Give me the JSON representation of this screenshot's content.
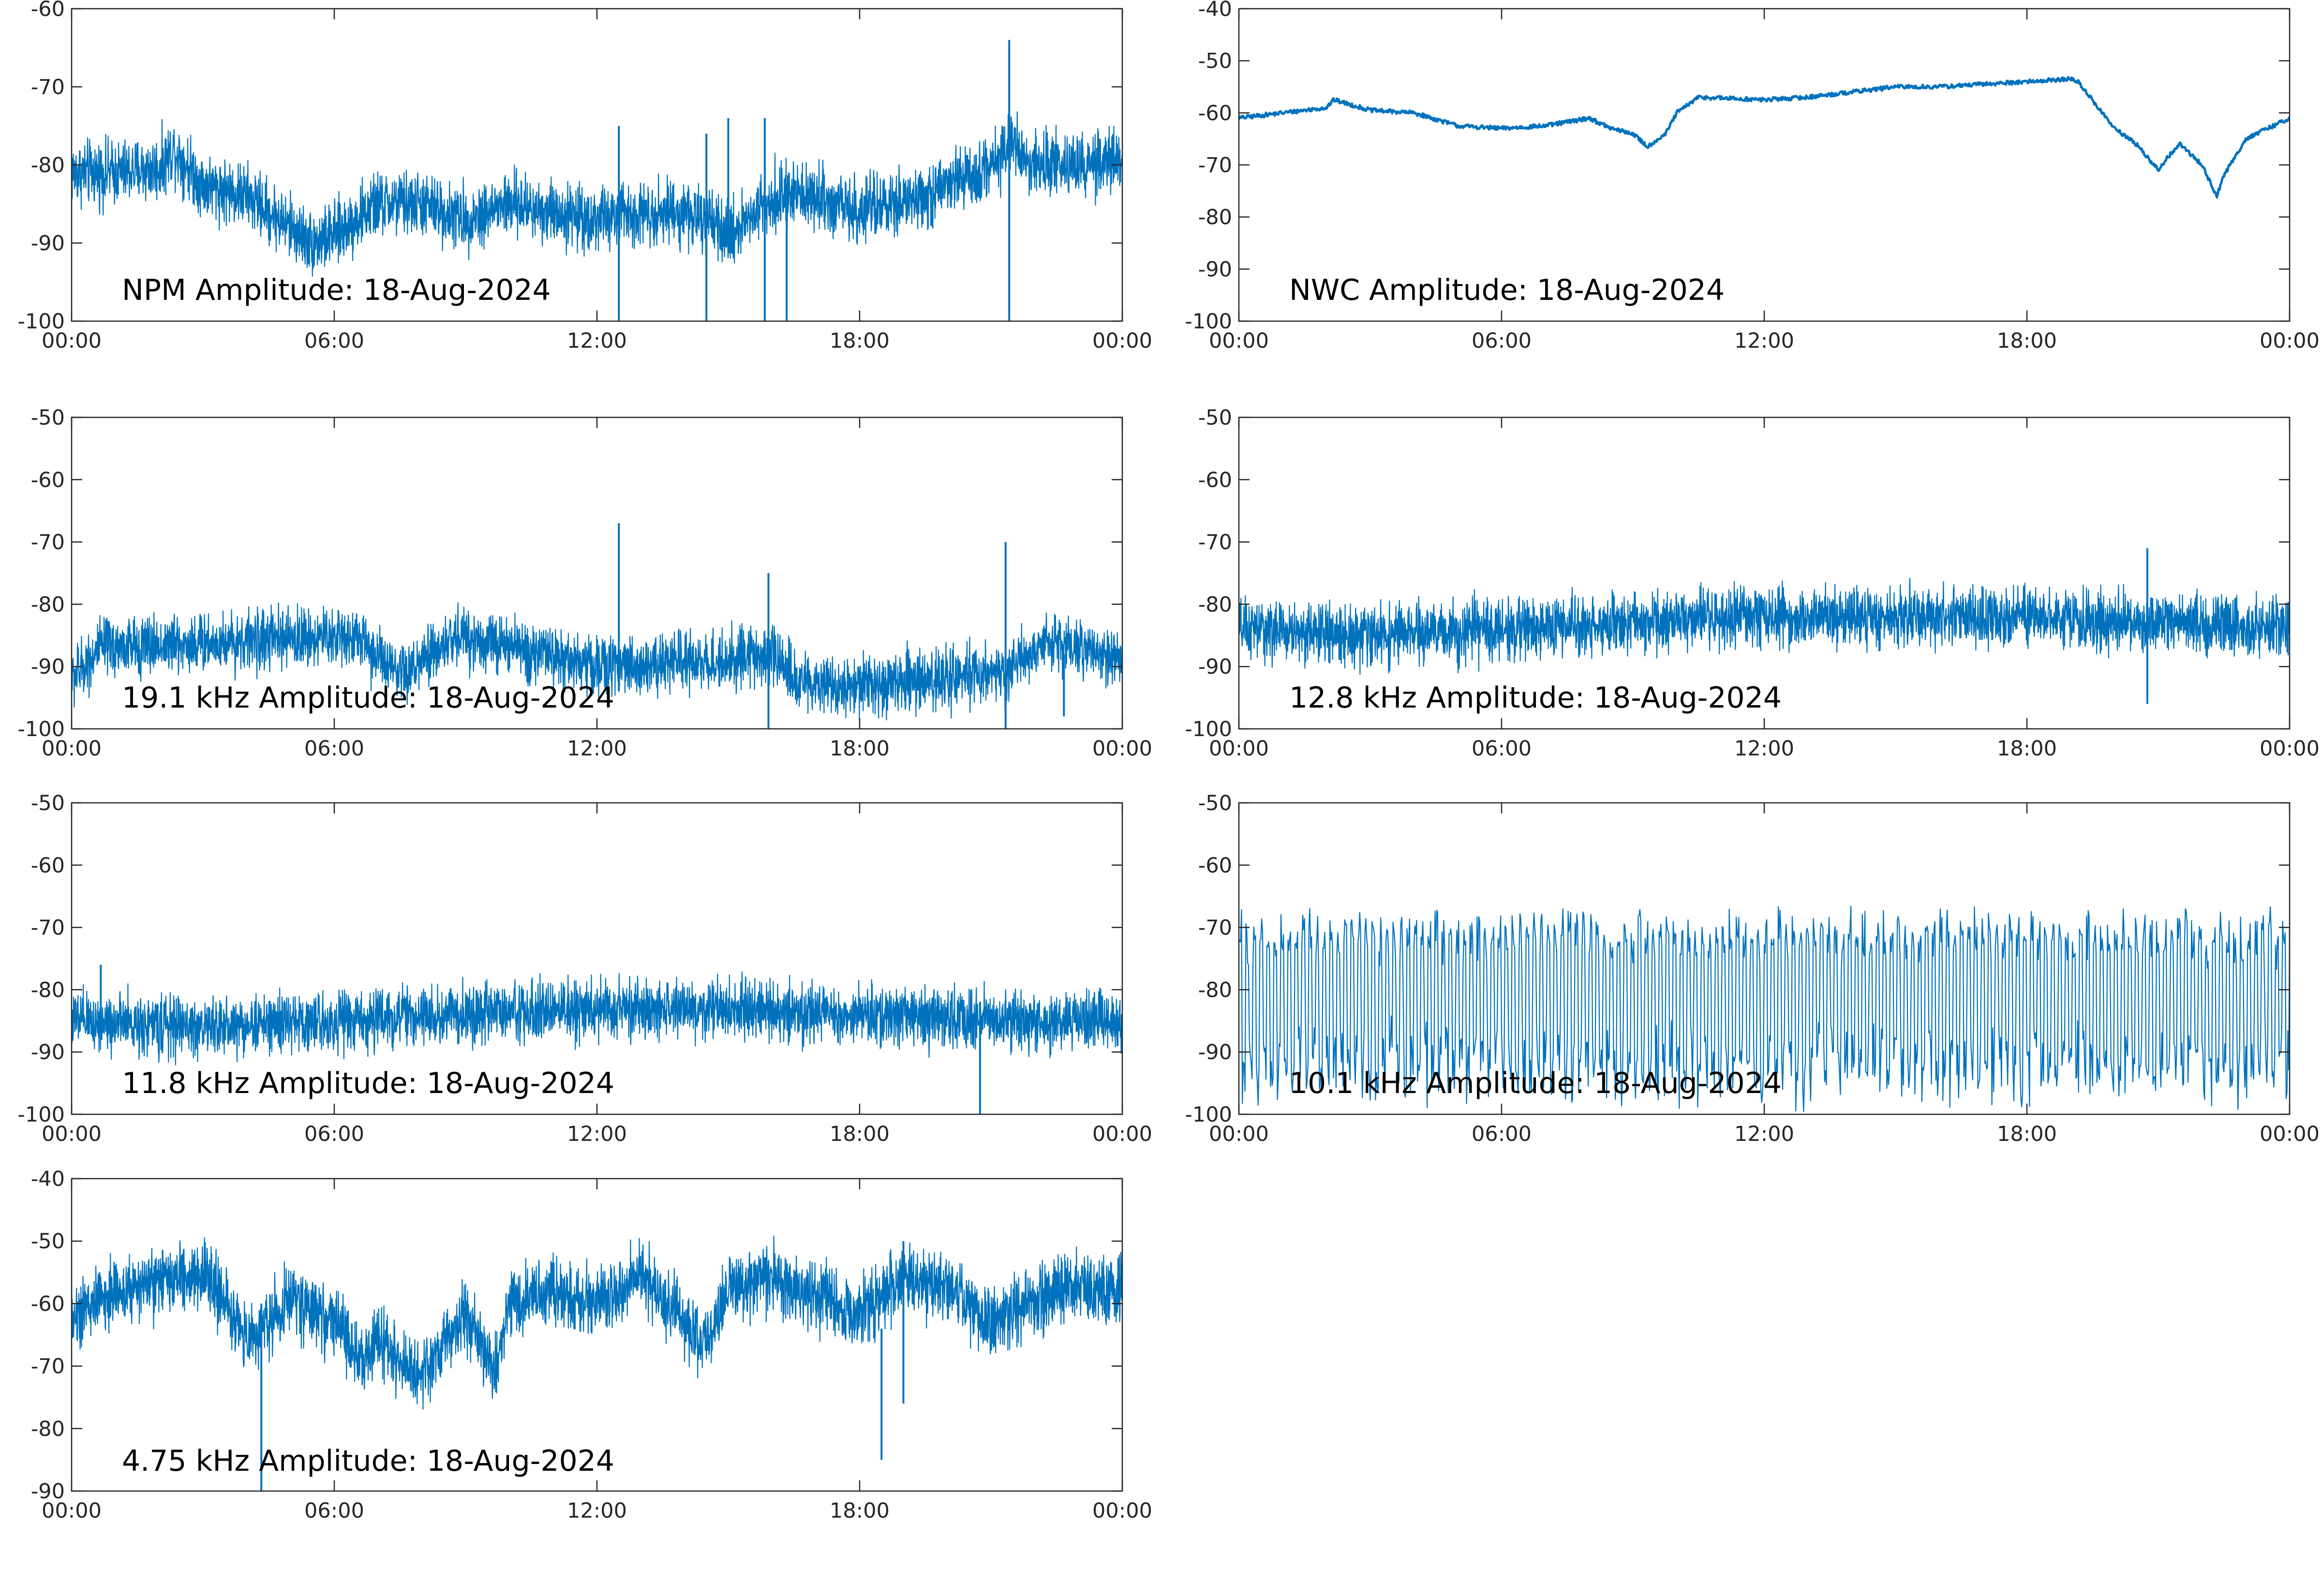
{
  "figure": {
    "line_color": "#0072BD",
    "axis_color": "#262626",
    "background": "#ffffff"
  },
  "chart_data": [
    {
      "type": "line",
      "title": "NPM Amplitude: 18-Aug-2024",
      "xlabel": "",
      "ylabel": "",
      "xlim": [
        "00:00",
        "24:00"
      ],
      "xticks": [
        "00:00",
        "06:00",
        "12:00",
        "18:00",
        "00:00"
      ],
      "ylim": [
        -100,
        -60
      ],
      "yticks": [
        "-60",
        "-70",
        "-80",
        "-90",
        "-100"
      ],
      "grid": false,
      "series": [
        {
          "x": [
            "00:00",
            "01:00",
            "02:00",
            "02:20",
            "03:00",
            "04:00",
            "05:00",
            "05:30",
            "06:00",
            "07:00",
            "08:00",
            "09:00",
            "10:00",
            "11:00",
            "12:00",
            "13:00",
            "14:00",
            "15:00",
            "16:00",
            "17:00",
            "18:00",
            "19:00",
            "20:00",
            "21:00",
            "21:30",
            "22:00",
            "23:00",
            "24:00"
          ],
          "y": [
            -81,
            -81,
            -80.5,
            -78,
            -82.5,
            -84,
            -88,
            -90,
            -89,
            -85,
            -85,
            -87,
            -85,
            -86,
            -87,
            -86,
            -86,
            -89,
            -84,
            -84,
            -86,
            -85,
            -83,
            -80,
            -77,
            -80,
            -80,
            -80
          ],
          "noise": 6,
          "spikes": [
            {
              "x": "12:30",
              "y_min": -100,
              "y_max": -75
            },
            {
              "x": "14:30",
              "y_min": -100,
              "y_max": -76
            },
            {
              "x": "15:00",
              "y_min": -88,
              "y_max": -74
            },
            {
              "x": "15:50",
              "y_min": -100,
              "y_max": -74
            },
            {
              "x": "16:20",
              "y_min": -100,
              "y_max": -86
            },
            {
              "x": "21:25",
              "y_min": -100,
              "y_max": -64
            }
          ]
        }
      ]
    },
    {
      "type": "line",
      "title": "NWC Amplitude: 18-Aug-2024",
      "xlabel": "",
      "ylabel": "",
      "xlim": [
        "00:00",
        "24:00"
      ],
      "xticks": [
        "00:00",
        "06:00",
        "12:00",
        "18:00",
        "00:00"
      ],
      "ylim": [
        -100,
        -40
      ],
      "yticks": [
        "-40",
        "-50",
        "-60",
        "-70",
        "-80",
        "-90",
        "-100"
      ],
      "grid": false,
      "series": [
        {
          "x": [
            "00:00",
            "01:00",
            "02:00",
            "02:10",
            "03:00",
            "04:00",
            "05:00",
            "06:00",
            "07:00",
            "08:00",
            "08:30",
            "09:00",
            "09:20",
            "09:45",
            "10:00",
            "10:30",
            "12:00",
            "13:00",
            "14:00",
            "15:00",
            "16:00",
            "17:00",
            "18:00",
            "19:00",
            "19:10",
            "20:00",
            "20:30",
            "21:00",
            "21:10",
            "21:30",
            "22:00",
            "22:20",
            "22:30",
            "23:00",
            "24:00"
          ],
          "y": [
            -61,
            -60,
            -59,
            -57.5,
            -59.5,
            -60,
            -62.5,
            -63,
            -62.5,
            -61,
            -63,
            -64,
            -66.5,
            -64,
            -60,
            -57,
            -57.5,
            -57,
            -56,
            -55,
            -55,
            -54.5,
            -54,
            -53.5,
            -54,
            -63,
            -66,
            -71,
            -69,
            -66,
            -70,
            -76,
            -72,
            -65,
            -61
          ]
        }
      ]
    },
    {
      "type": "line",
      "title": "19.1 kHz Amplitude: 18-Aug-2024",
      "xlabel": "",
      "ylabel": "",
      "xlim": [
        "00:00",
        "24:00"
      ],
      "xticks": [
        "00:00",
        "06:00",
        "12:00",
        "18:00",
        "00:00"
      ],
      "ylim": [
        -100,
        -50
      ],
      "yticks": [
        "-50",
        "-60",
        "-70",
        "-80",
        "-90",
        "-100"
      ],
      "grid": false,
      "series": [
        {
          "x": [
            "00:00",
            "00:40",
            "06:30",
            "07:30",
            "08:50",
            "12:00",
            "15:00",
            "16:00",
            "16:40",
            "18:00",
            "21:15",
            "22:20",
            "23:30",
            "24:00"
          ],
          "y": [
            -92,
            -87,
            -85,
            -92,
            -85,
            -90,
            -89,
            -88,
            -93,
            -93,
            -91,
            -86,
            -88,
            -89
          ],
          "noise": 7,
          "spikes": [
            {
              "x": "12:30",
              "y_min": -94,
              "y_max": -67
            },
            {
              "x": "15:55",
              "y_min": -100,
              "y_max": -75
            },
            {
              "x": "21:20",
              "y_min": -100,
              "y_max": -70
            },
            {
              "x": "22:40",
              "y_min": -98,
              "y_max": -88
            }
          ]
        }
      ]
    },
    {
      "type": "line",
      "title": "12.8 kHz Amplitude: 18-Aug-2024",
      "xlabel": "",
      "ylabel": "",
      "xlim": [
        "00:00",
        "24:00"
      ],
      "xticks": [
        "00:00",
        "06:00",
        "12:00",
        "18:00",
        "00:00"
      ],
      "ylim": [
        -100,
        -50
      ],
      "yticks": [
        "-50",
        "-60",
        "-70",
        "-80",
        "-90",
        "-100"
      ],
      "grid": false,
      "series": [
        {
          "x": [
            "00:00",
            "03:00",
            "06:00",
            "09:00",
            "12:00",
            "15:00",
            "18:00",
            "21:00",
            "24:00"
          ],
          "y": [
            -84,
            -85,
            -84,
            -83,
            -82,
            -82,
            -82,
            -83,
            -84
          ],
          "noise": 7,
          "spikes": [
            {
              "x": "20:45",
              "y_min": -96,
              "y_max": -71
            }
          ]
        }
      ]
    },
    {
      "type": "line",
      "title": "11.8 kHz Amplitude: 18-Aug-2024",
      "xlabel": "",
      "ylabel": "",
      "xlim": [
        "00:00",
        "24:00"
      ],
      "xticks": [
        "00:00",
        "06:00",
        "12:00",
        "18:00",
        "00:00"
      ],
      "ylim": [
        -100,
        -50
      ],
      "yticks": [
        "-50",
        "-60",
        "-70",
        "-80",
        "-90",
        "-100"
      ],
      "grid": false,
      "series": [
        {
          "x": [
            "00:00",
            "03:00",
            "06:00",
            "09:00",
            "12:00",
            "15:00",
            "18:00",
            "21:00",
            "24:00"
          ],
          "y": [
            -85,
            -86,
            -85,
            -84,
            -83,
            -83,
            -84,
            -85,
            -85
          ],
          "noise": 7,
          "spikes": [
            {
              "x": "00:40",
              "y_min": -88,
              "y_max": -76
            },
            {
              "x": "20:45",
              "y_min": -100,
              "y_max": -82
            }
          ]
        }
      ]
    },
    {
      "type": "line",
      "title": "10.1 kHz Amplitude: 18-Aug-2024",
      "xlabel": "",
      "ylabel": "",
      "xlim": [
        "00:00",
        "24:00"
      ],
      "xticks": [
        "00:00",
        "06:00",
        "12:00",
        "18:00",
        "00:00"
      ],
      "ylim": [
        -100,
        -50
      ],
      "yticks": [
        "-50",
        "-60",
        "-70",
        "-80",
        "-90",
        "-100"
      ],
      "grid": false,
      "series": [
        {
          "x": [
            "00:00",
            "06:00",
            "12:00",
            "18:00",
            "24:00"
          ],
          "y": [
            -75,
            -75,
            -75,
            -75,
            -75
          ],
          "oscillation": {
            "cycles": 150,
            "y_min": -100,
            "y_max": -66
          }
        }
      ]
    },
    {
      "type": "line",
      "title": "4.75 kHz Amplitude: 18-Aug-2024",
      "xlabel": "",
      "ylabel": "",
      "xlim": [
        "00:00",
        "24:00"
      ],
      "xticks": [
        "00:00",
        "06:00",
        "12:00",
        "18:00",
        "00:00"
      ],
      "ylim": [
        -90,
        -40
      ],
      "yticks": [
        "-40",
        "-50",
        "-60",
        "-70",
        "-80",
        "-90"
      ],
      "grid": false,
      "series": [
        {
          "x": [
            "00:00",
            "01:00",
            "02:00",
            "03:00",
            "03:30",
            "04:00",
            "05:00",
            "06:00",
            "06:40",
            "07:00",
            "08:00",
            "09:00",
            "09:40",
            "10:00",
            "11:00",
            "12:00",
            "13:00",
            "14:00",
            "14:30",
            "15:00",
            "16:00",
            "17:00",
            "18:00",
            "19:00",
            "20:00",
            "21:00",
            "22:00",
            "23:00",
            "24:00"
          ],
          "y": [
            -62,
            -58,
            -57,
            -55,
            -60,
            -66,
            -59,
            -63,
            -70,
            -65,
            -72,
            -62,
            -71,
            -60,
            -58,
            -60,
            -55,
            -63,
            -66,
            -58,
            -56,
            -59,
            -62,
            -56,
            -57,
            -63,
            -59,
            -57,
            -58
          ],
          "noise": 8,
          "spikes": [
            {
              "x": "04:20",
              "y_min": -90,
              "y_max": -60
            },
            {
              "x": "18:30",
              "y_min": -85,
              "y_max": -64
            },
            {
              "x": "19:00",
              "y_min": -76,
              "y_max": -50
            }
          ]
        }
      ]
    }
  ]
}
